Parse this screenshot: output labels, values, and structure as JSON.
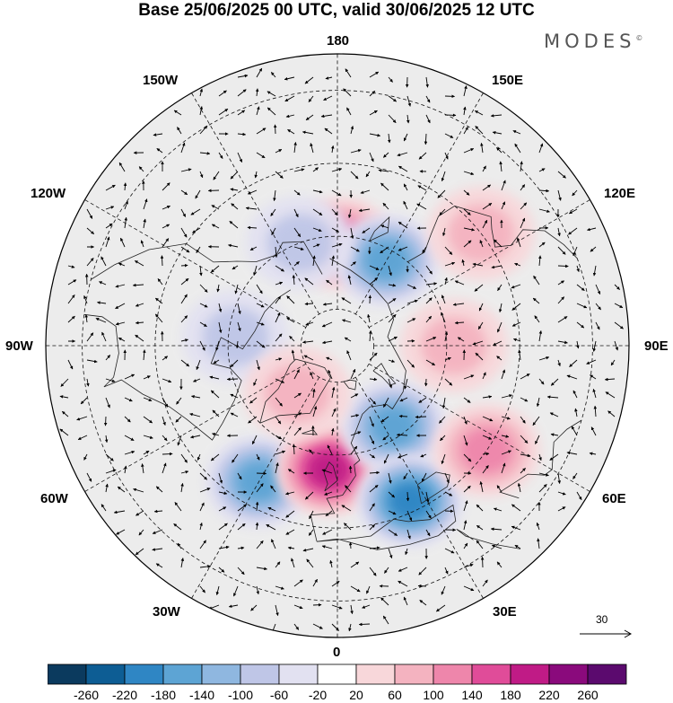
{
  "title": "Base 25/06/2025 00 UTC, valid 30/06/2025 12 UTC",
  "brand": "MODES",
  "brand_mark": "©",
  "longitude_labels": {
    "top": "180",
    "bottom": "0",
    "left": "90W",
    "right": "90E",
    "upper_left_1": "150W",
    "upper_left_2": "120W",
    "upper_right_1": "150E",
    "upper_right_2": "120E",
    "lower_left_1": "60W",
    "lower_left_2": "30W",
    "lower_right_1": "60E",
    "lower_right_2": "30E"
  },
  "vector_scale_label": "30",
  "colorbar": {
    "ticks": [
      "-260",
      "-220",
      "-180",
      "-140",
      "-100",
      "-60",
      "-20",
      "20",
      "60",
      "100",
      "140",
      "180",
      "220",
      "260"
    ],
    "colors": [
      "#0b3a5e",
      "#0d5d94",
      "#2f86c4",
      "#5da4d4",
      "#8fb7e0",
      "#bfc6e7",
      "#e2e1f1",
      "#ffffff",
      "#f8d7da",
      "#f4b3c0",
      "#ee86ab",
      "#e04c99",
      "#c01b86",
      "#8a0a7c",
      "#5b0a6e"
    ]
  },
  "anomaly_centers": [
    {
      "name": "pacific-positive",
      "lat": 62,
      "lon": 178,
      "value": 140
    },
    {
      "name": "kamchatka-negative",
      "lat": 63,
      "lon": 150,
      "value": -140
    },
    {
      "name": "alaska-negative",
      "lat": 60,
      "lon": -160,
      "value": -80
    },
    {
      "name": "canada-negative",
      "lat": 62,
      "lon": -95,
      "value": -60
    },
    {
      "name": "north-atlantic-negative",
      "lat": 47,
      "lon": -30,
      "value": -140
    },
    {
      "name": "west-europe-positive",
      "lat": 56,
      "lon": -4,
      "value": 180
    },
    {
      "name": "scandinavia-negative",
      "lat": 63,
      "lon": 35,
      "value": -140
    },
    {
      "name": "black-sea-negative",
      "lat": 43,
      "lon": 25,
      "value": -180
    },
    {
      "name": "central-asia-positive",
      "lat": 40,
      "lon": 55,
      "value": 100
    },
    {
      "name": "siberia-positive",
      "lat": 58,
      "lon": 90,
      "value": 60
    },
    {
      "name": "east-asia-positive",
      "lat": 40,
      "lon": 128,
      "value": 60
    },
    {
      "name": "greenland-positive",
      "lat": 73,
      "lon": -40,
      "value": 60
    }
  ]
}
